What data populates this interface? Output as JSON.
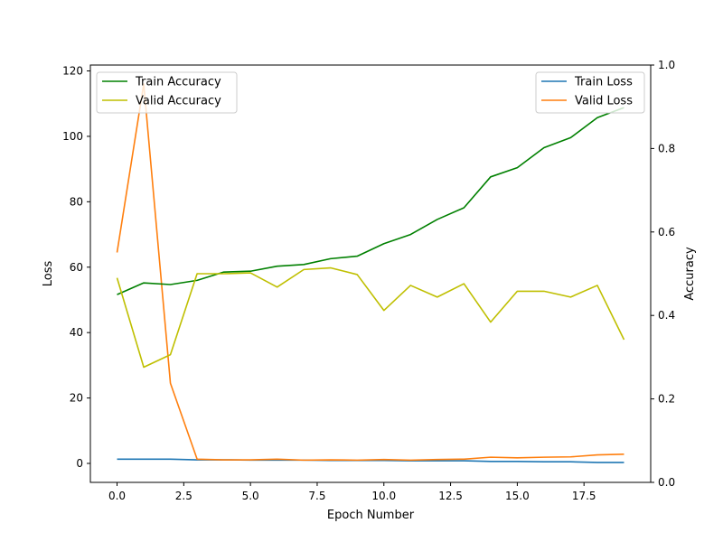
{
  "chart_data": {
    "type": "line",
    "xlabel": "Epoch Number",
    "ylabel_left": "Loss",
    "ylabel_right": "Accuracy",
    "xlim": [
      -1.0,
      20.0
    ],
    "ylim_left": [
      -5.8,
      121.8
    ],
    "ylim_right": [
      0.0,
      1.0
    ],
    "x_ticks": [
      0.0,
      2.5,
      5.0,
      7.5,
      10.0,
      12.5,
      15.0,
      17.5
    ],
    "x_tick_labels": [
      "0.0",
      "2.5",
      "5.0",
      "7.5",
      "10.0",
      "12.5",
      "15.0",
      "17.5"
    ],
    "y_left_ticks": [
      0,
      20,
      40,
      60,
      80,
      100,
      120
    ],
    "y_left_tick_labels": [
      "0",
      "20",
      "40",
      "60",
      "80",
      "100",
      "120"
    ],
    "y_right_ticks": [
      0.0,
      0.2,
      0.4,
      0.6,
      0.8,
      1.0
    ],
    "y_right_tick_labels": [
      "0.0",
      "0.2",
      "0.4",
      "0.6",
      "0.8",
      "1.0"
    ],
    "grid": false,
    "x": [
      0,
      1,
      2,
      3,
      4,
      5,
      6,
      7,
      8,
      9,
      10,
      11,
      12,
      13,
      14,
      15,
      16,
      17,
      18,
      19
    ],
    "series_left": [
      {
        "name": "Train Loss",
        "color": "#1f77b4",
        "values": [
          1.3,
          1.3,
          1.3,
          1.1,
          1.1,
          1.0,
          1.0,
          1.0,
          0.9,
          0.9,
          0.9,
          0.8,
          0.8,
          0.8,
          0.6,
          0.6,
          0.5,
          0.5,
          0.3,
          0.3
        ]
      },
      {
        "name": "Valid Loss",
        "color": "#ff7f0e",
        "values": [
          64.5,
          116.0,
          24.5,
          1.3,
          1.1,
          1.1,
          1.3,
          1.0,
          1.1,
          1.0,
          1.2,
          1.0,
          1.2,
          1.3,
          1.9,
          1.7,
          1.9,
          2.0,
          2.6,
          2.8
        ]
      }
    ],
    "series_right": [
      {
        "name": "Train Accuracy",
        "color": "#008000",
        "values": [
          0.45,
          0.478,
          0.474,
          0.484,
          0.504,
          0.506,
          0.518,
          0.522,
          0.536,
          0.542,
          0.572,
          0.594,
          0.63,
          0.658,
          0.732,
          0.754,
          0.802,
          0.826,
          0.874,
          0.898
        ]
      },
      {
        "name": "Valid Accuracy",
        "color": "#bfbf00",
        "values": [
          0.49,
          0.276,
          0.306,
          0.5,
          0.5,
          0.502,
          0.468,
          0.51,
          0.514,
          0.498,
          0.412,
          0.472,
          0.444,
          0.476,
          0.384,
          0.458,
          0.458,
          0.444,
          0.472,
          0.342
        ]
      }
    ],
    "legend_left": {
      "placement": "upper-left",
      "entries": [
        "Train Accuracy",
        "Valid Accuracy"
      ]
    },
    "legend_right": {
      "placement": "upper-right",
      "entries": [
        "Train Loss",
        "Valid Loss"
      ]
    }
  }
}
